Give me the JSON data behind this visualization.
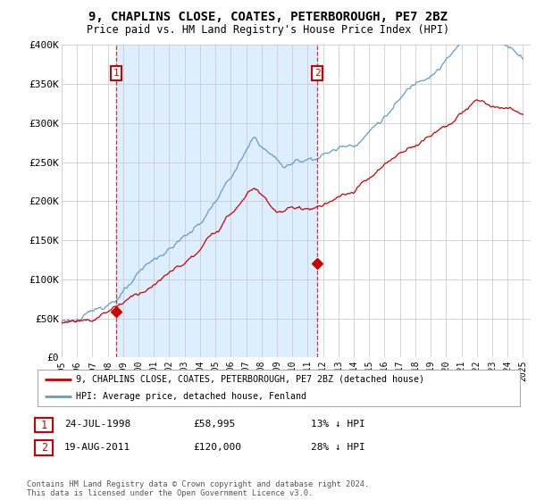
{
  "title": "9, CHAPLINS CLOSE, COATES, PETERBOROUGH, PE7 2BZ",
  "subtitle": "Price paid vs. HM Land Registry's House Price Index (HPI)",
  "legend_entry1": "9, CHAPLINS CLOSE, COATES, PETERBOROUGH, PE7 2BZ (detached house)",
  "legend_entry2": "HPI: Average price, detached house, Fenland",
  "annotation1_date": "24-JUL-1998",
  "annotation1_price": "£58,995",
  "annotation1_hpi": "13% ↓ HPI",
  "annotation2_date": "19-AUG-2011",
  "annotation2_price": "£120,000",
  "annotation2_hpi": "28% ↓ HPI",
  "footer": "Contains HM Land Registry data © Crown copyright and database right 2024.\nThis data is licensed under the Open Government Licence v3.0.",
  "red_color": "#cc0000",
  "blue_color": "#6699cc",
  "shade_color": "#ddeeff",
  "background_color": "#ffffff",
  "grid_color": "#cccccc",
  "sale1_year": 1998.56,
  "sale1_value": 58995,
  "sale2_year": 2011.63,
  "sale2_value": 120000,
  "ymax": 400000,
  "ymin": 0,
  "xmin": 1995.0,
  "xmax": 2025.5
}
